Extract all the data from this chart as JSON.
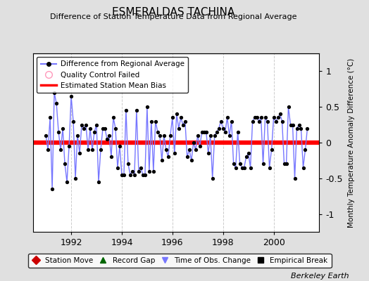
{
  "title": "ESMERALDAS TACHINA",
  "subtitle": "Difference of Station Temperature Data from Regional Average",
  "ylabel_right": "Monthly Temperature Anomaly Difference (°C)",
  "credit": "Berkeley Earth",
  "bias_value": 0.0,
  "ylim": [
    -1.25,
    1.25
  ],
  "xlim": [
    1990.5,
    2001.8
  ],
  "xticks": [
    1992,
    1994,
    1996,
    1998,
    2000
  ],
  "yticks_right": [
    -1,
    -0.5,
    0,
    0.5,
    1
  ],
  "bg_color": "#e0e0e0",
  "plot_bg_color": "#ffffff",
  "line_color": "#7777ff",
  "marker_color": "#000000",
  "bias_color": "#ff0000",
  "grid_color": "#cccccc",
  "time_values": [
    1991.0,
    1991.083,
    1991.167,
    1991.25,
    1991.333,
    1991.417,
    1991.5,
    1991.583,
    1991.667,
    1991.75,
    1991.833,
    1991.917,
    1992.0,
    1992.083,
    1992.167,
    1992.25,
    1992.333,
    1992.417,
    1992.5,
    1992.583,
    1992.667,
    1992.75,
    1992.833,
    1992.917,
    1993.0,
    1993.083,
    1993.167,
    1993.25,
    1993.333,
    1993.417,
    1993.5,
    1993.583,
    1993.667,
    1993.75,
    1993.833,
    1993.917,
    1994.0,
    1994.083,
    1994.167,
    1994.25,
    1994.333,
    1994.417,
    1994.5,
    1994.583,
    1994.667,
    1994.75,
    1994.833,
    1994.917,
    1995.0,
    1995.083,
    1995.167,
    1995.25,
    1995.333,
    1995.417,
    1995.5,
    1995.583,
    1995.667,
    1995.75,
    1995.833,
    1995.917,
    1996.0,
    1996.083,
    1996.167,
    1996.25,
    1996.333,
    1996.417,
    1996.5,
    1996.583,
    1996.667,
    1996.75,
    1996.833,
    1996.917,
    1997.0,
    1997.083,
    1997.167,
    1997.25,
    1997.333,
    1997.417,
    1997.5,
    1997.583,
    1997.667,
    1997.75,
    1997.833,
    1997.917,
    1998.0,
    1998.083,
    1998.167,
    1998.25,
    1998.333,
    1998.417,
    1998.5,
    1998.583,
    1998.667,
    1998.75,
    1998.833,
    1998.917,
    1999.0,
    1999.083,
    1999.167,
    1999.25,
    1999.333,
    1999.417,
    1999.5,
    1999.583,
    1999.667,
    1999.75,
    1999.833,
    1999.917,
    2000.0,
    2000.083,
    2000.167,
    2000.25,
    2000.333,
    2000.417,
    2000.5,
    2000.583,
    2000.667,
    2000.75,
    2000.833,
    2000.917,
    2001.0,
    2001.083,
    2001.167,
    2001.25,
    2001.333
  ],
  "data_values": [
    0.1,
    -0.1,
    0.35,
    -0.65,
    0.7,
    0.55,
    0.15,
    -0.1,
    0.2,
    -0.3,
    -0.55,
    -0.05,
    0.65,
    0.3,
    -0.5,
    0.1,
    -0.15,
    0.25,
    0.2,
    0.25,
    -0.1,
    0.2,
    -0.1,
    0.15,
    0.25,
    -0.55,
    -0.1,
    0.2,
    0.2,
    0.05,
    0.1,
    -0.2,
    0.35,
    0.2,
    -0.35,
    -0.05,
    -0.45,
    -0.45,
    0.45,
    -0.3,
    -0.45,
    -0.4,
    -0.45,
    0.45,
    -0.4,
    -0.35,
    -0.45,
    -0.45,
    0.5,
    -0.4,
    0.3,
    -0.4,
    0.3,
    0.15,
    0.1,
    -0.25,
    0.1,
    -0.1,
    -0.2,
    0.1,
    0.35,
    -0.15,
    0.4,
    0.2,
    0.35,
    0.25,
    0.3,
    -0.2,
    -0.1,
    -0.25,
    0.0,
    -0.1,
    0.1,
    -0.05,
    0.15,
    0.15,
    0.15,
    -0.15,
    0.1,
    -0.5,
    0.1,
    0.15,
    0.2,
    0.3,
    0.2,
    0.15,
    0.35,
    0.1,
    0.3,
    -0.3,
    -0.35,
    0.15,
    -0.3,
    -0.35,
    -0.35,
    -0.2,
    -0.15,
    -0.35,
    0.3,
    0.35,
    0.35,
    0.3,
    0.35,
    -0.3,
    0.35,
    0.3,
    -0.35,
    -0.1,
    0.35,
    0.3,
    0.35,
    0.4,
    0.3,
    -0.3,
    -0.3,
    0.5,
    0.25,
    0.25,
    -0.5,
    0.2,
    0.25,
    0.2,
    -0.35,
    -0.1,
    0.2
  ]
}
